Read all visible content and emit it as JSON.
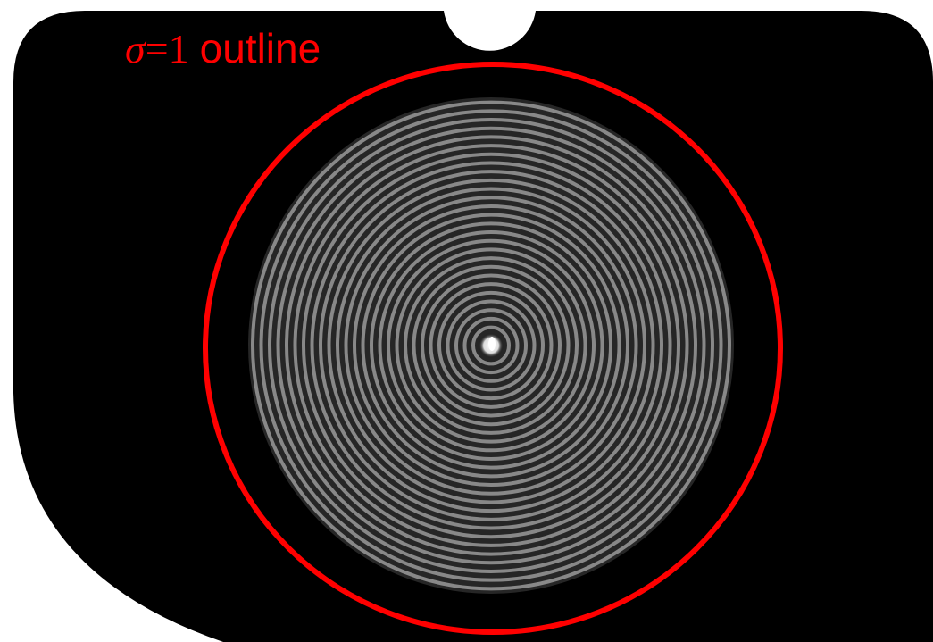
{
  "annotation": {
    "symbol": "σ",
    "equals": "=1",
    "word": "outline"
  }
}
